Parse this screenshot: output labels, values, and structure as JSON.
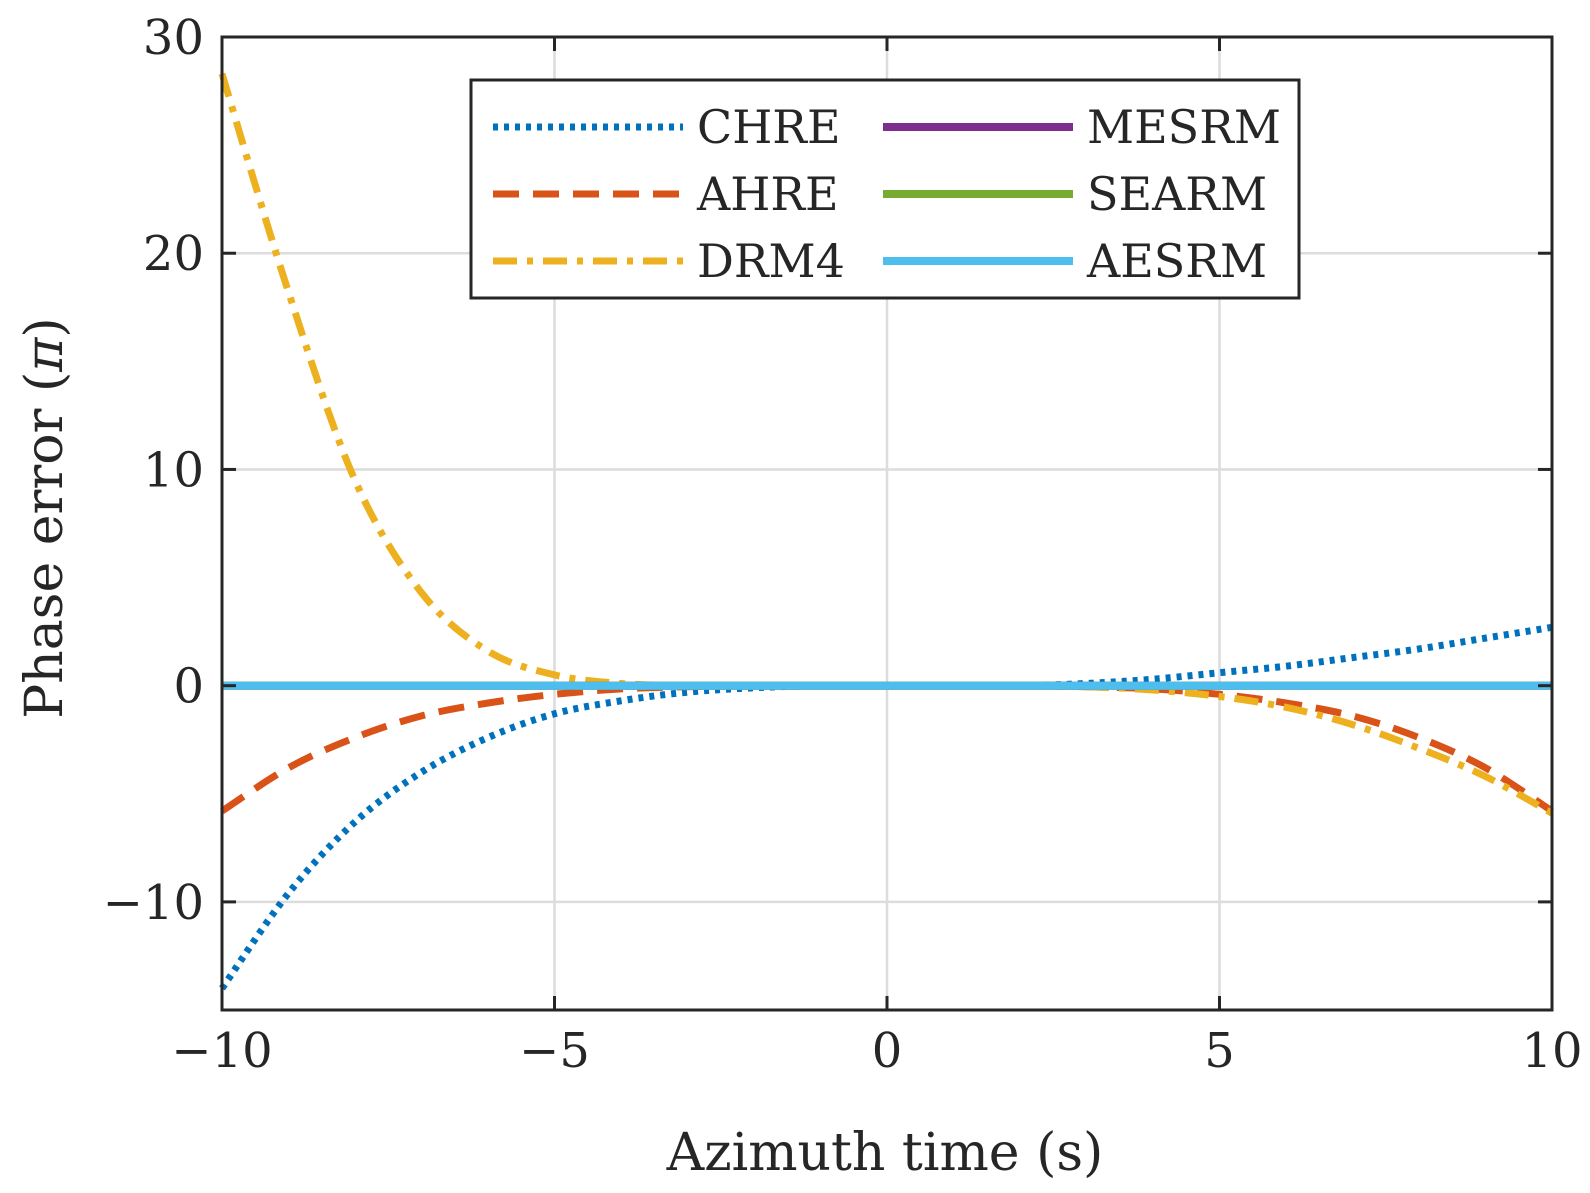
{
  "chart_data": {
    "type": "line",
    "xlabel": "Azimuth time (s)",
    "ylabel": "Phase error (",
    "ylabel_symbol": "π",
    "ylabel_close": ")",
    "xlim": [
      -10,
      10
    ],
    "ylim": [
      -15,
      30
    ],
    "xticks": [
      -10,
      -5,
      0,
      5,
      10
    ],
    "xtick_labels": [
      "−10",
      "−5",
      "0",
      "5",
      "10"
    ],
    "yticks": [
      -10,
      0,
      10,
      20,
      30
    ],
    "ytick_labels": [
      "−10",
      "0",
      "10",
      "20",
      "30"
    ],
    "grid": true,
    "legend_location": "top-center",
    "x": [
      -10,
      -9,
      -8,
      -7,
      -6,
      -5,
      -4,
      -3,
      -2,
      -1,
      0,
      1,
      2,
      3,
      4,
      5,
      6,
      7,
      8,
      9,
      10
    ],
    "series": [
      {
        "name": "CHRE",
        "color": "#0072BD",
        "style": "dotted",
        "values": [
          -14.0,
          -9.6,
          -6.3,
          -4.0,
          -2.4,
          -1.3,
          -0.7,
          -0.3,
          -0.1,
          0.0,
          0.0,
          0.0,
          0.0,
          0.1,
          0.3,
          0.6,
          0.9,
          1.3,
          1.7,
          2.2,
          2.7
        ]
      },
      {
        "name": "AHRE",
        "color": "#D95319",
        "style": "dashed",
        "values": [
          -5.8,
          -3.8,
          -2.4,
          -1.4,
          -0.8,
          -0.4,
          -0.15,
          -0.05,
          0.0,
          0.0,
          0.0,
          0.0,
          0.0,
          -0.05,
          -0.15,
          -0.4,
          -0.8,
          -1.4,
          -2.4,
          -3.8,
          -5.8
        ]
      },
      {
        "name": "DRM4",
        "color": "#EDB120",
        "style": "dashdot",
        "values": [
          28.3,
          18.2,
          9.5,
          4.3,
          1.6,
          0.5,
          0.1,
          0.0,
          0.0,
          0.0,
          0.0,
          0.0,
          0.0,
          -0.05,
          -0.2,
          -0.5,
          -1.0,
          -1.8,
          -2.9,
          -4.2,
          -5.9
        ]
      },
      {
        "name": "MESRM",
        "color": "#7E2F8E",
        "style": "solid",
        "values": [
          0,
          0,
          0,
          0,
          0,
          0,
          0,
          0,
          0,
          0,
          0,
          0,
          0,
          0,
          0,
          0,
          0,
          0,
          0,
          0,
          0
        ]
      },
      {
        "name": "SEARM",
        "color": "#77AC30",
        "style": "solid",
        "values": [
          0,
          0,
          0,
          0,
          0,
          0,
          0,
          0,
          0,
          0,
          0,
          0,
          0,
          0,
          0,
          0,
          0,
          0,
          0,
          0,
          0
        ]
      },
      {
        "name": "AESRM",
        "color": "#4DBEEE",
        "style": "solid",
        "values": [
          0,
          0,
          0,
          0,
          0,
          0,
          0,
          0,
          0,
          0,
          0,
          0,
          0,
          0,
          0,
          0,
          0,
          0,
          0,
          0,
          0
        ]
      }
    ]
  }
}
